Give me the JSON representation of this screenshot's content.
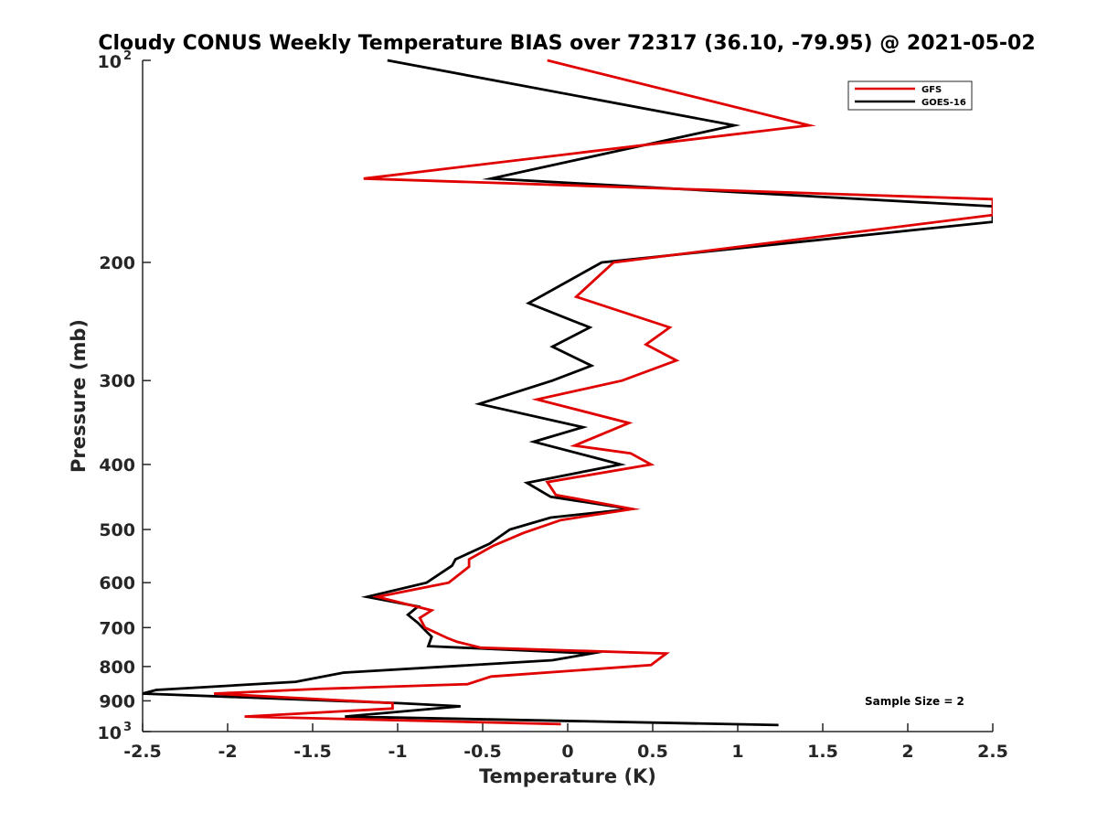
{
  "chart_data": {
    "type": "line",
    "title": "Cloudy CONUS Weekly Temperature BIAS over 72317 (36.10, -79.95) @ 2021-05-02",
    "xlabel": "Temperature (K)",
    "ylabel": "Pressure (mb)",
    "xlim": [
      -2.5,
      2.5
    ],
    "ylim": [
      100,
      1000
    ],
    "y_scale": "log",
    "y_reversed": true,
    "grid": false,
    "legend_position": "top-right",
    "x_ticks": [
      -2.5,
      -2,
      -1.5,
      -1,
      -0.5,
      0,
      0.5,
      1,
      1.5,
      2,
      2.5
    ],
    "x_tick_labels": [
      "-2.5",
      "-2",
      "-1.5",
      "-1",
      "-0.5",
      "0",
      "0.5",
      "1",
      "1.5",
      "2",
      "2.5"
    ],
    "y_ticks": [
      {
        "value": 100,
        "base": "10",
        "exp": "2"
      },
      {
        "value": 200,
        "base": "200",
        "exp": ""
      },
      {
        "value": 300,
        "base": "300",
        "exp": ""
      },
      {
        "value": 400,
        "base": "400",
        "exp": ""
      },
      {
        "value": 500,
        "base": "500",
        "exp": ""
      },
      {
        "value": 600,
        "base": "600",
        "exp": ""
      },
      {
        "value": 700,
        "base": "700",
        "exp": ""
      },
      {
        "value": 800,
        "base": "800",
        "exp": ""
      },
      {
        "value": 900,
        "base": "900",
        "exp": ""
      },
      {
        "value": 1000,
        "base": "10",
        "exp": "3"
      }
    ],
    "annotation": "Sample Size = 2",
    "series": [
      {
        "name": "GFS",
        "color": "#e00000",
        "points": [
          [
            -0.12,
            100
          ],
          [
            1.42,
            125
          ],
          [
            -1.2,
            150
          ],
          [
            2.5,
            161
          ],
          [
            2.5,
            170
          ],
          [
            0.27,
            200
          ],
          [
            0.05,
            225
          ],
          [
            0.6,
            250
          ],
          [
            0.46,
            265
          ],
          [
            0.64,
            280
          ],
          [
            0.32,
            300
          ],
          [
            -0.18,
            320
          ],
          [
            0.36,
            347
          ],
          [
            0.04,
            375
          ],
          [
            0.37,
            385
          ],
          [
            0.49,
            400
          ],
          [
            -0.12,
            425
          ],
          [
            -0.07,
            444
          ],
          [
            0.38,
            466
          ],
          [
            -0.04,
            484
          ],
          [
            -0.26,
            506
          ],
          [
            -0.44,
            529
          ],
          [
            -0.58,
            554
          ],
          [
            -0.58,
            568
          ],
          [
            -0.7,
            600
          ],
          [
            -1.12,
            630
          ],
          [
            -0.8,
            660
          ],
          [
            -0.87,
            677
          ],
          [
            -0.84,
            700
          ],
          [
            -0.71,
            725
          ],
          [
            -0.65,
            735
          ],
          [
            -0.51,
            750
          ],
          [
            0.58,
            765
          ],
          [
            0.49,
            796
          ],
          [
            -0.45,
            828
          ],
          [
            -0.59,
            850
          ],
          [
            -1.47,
            864
          ],
          [
            -2.08,
            878
          ],
          [
            -1.03,
            907
          ],
          [
            -1.03,
            924
          ],
          [
            -1.9,
            950
          ],
          [
            -0.04,
            975
          ]
        ]
      },
      {
        "name": "GOES-16",
        "color": "#000000",
        "points": [
          [
            -1.06,
            100
          ],
          [
            0.98,
            125
          ],
          [
            -0.45,
            150
          ],
          [
            2.5,
            165
          ],
          [
            2.5,
            174
          ],
          [
            0.2,
            200
          ],
          [
            -0.23,
            230
          ],
          [
            0.13,
            250
          ],
          [
            -0.09,
            267
          ],
          [
            0.14,
            285
          ],
          [
            -0.09,
            300
          ],
          [
            -0.52,
            325
          ],
          [
            0.09,
            352
          ],
          [
            -0.2,
            370
          ],
          [
            0.18,
            392
          ],
          [
            0.31,
            400
          ],
          [
            -0.24,
            426
          ],
          [
            -0.1,
            447
          ],
          [
            0.37,
            466
          ],
          [
            -0.1,
            480
          ],
          [
            -0.34,
            500
          ],
          [
            -0.46,
            525
          ],
          [
            -0.66,
            554
          ],
          [
            -0.68,
            566
          ],
          [
            -0.83,
            600
          ],
          [
            -1.18,
            630
          ],
          [
            -0.88,
            651
          ],
          [
            -0.94,
            670
          ],
          [
            -0.88,
            689
          ],
          [
            -0.83,
            710
          ],
          [
            -0.8,
            722
          ],
          [
            -0.82,
            746
          ],
          [
            0.14,
            765
          ],
          [
            -0.09,
            783
          ],
          [
            -1.32,
            817
          ],
          [
            -1.6,
            843
          ],
          [
            -2.42,
            867
          ],
          [
            -2.5,
            878
          ],
          [
            -1.0,
            907
          ],
          [
            -0.63,
            917
          ],
          [
            -1.31,
            950
          ],
          [
            1.24,
            978
          ]
        ]
      }
    ]
  }
}
